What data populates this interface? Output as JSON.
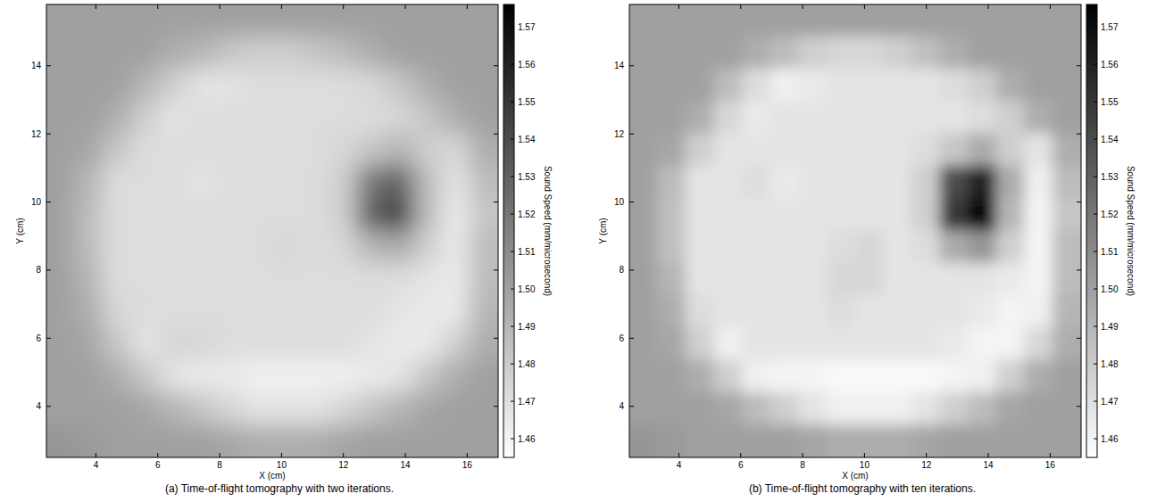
{
  "chart_data": [
    {
      "type": "heatmap",
      "title": "(a) Time-of-flight tomography with two iterations.",
      "xlabel": "X (cm)",
      "ylabel": "Y (cm)",
      "xlim": [
        2.4,
        17.0
      ],
      "ylim": [
        2.5,
        15.8
      ],
      "xticks": [
        4,
        6,
        8,
        10,
        12,
        14,
        16
      ],
      "yticks": [
        4,
        6,
        8,
        10,
        12,
        14
      ],
      "x": [
        2.86,
        3.77,
        4.68,
        5.6,
        6.51,
        7.42,
        8.33,
        9.25,
        10.16,
        11.07,
        11.98,
        12.9,
        13.81,
        14.72,
        15.63,
        16.54
      ],
      "y": [
        15.33,
        14.38,
        13.43,
        12.48,
        11.53,
        10.58,
        9.63,
        8.68,
        7.73,
        6.78,
        5.83,
        4.88,
        3.93,
        2.98
      ],
      "cells": [
        [
          1.5,
          1.5,
          1.5,
          1.5,
          1.5,
          1.5,
          1.5,
          1.5,
          1.5,
          1.5,
          1.5,
          1.5,
          1.5,
          1.5,
          1.5,
          1.5
        ],
        [
          1.5,
          1.5,
          1.5,
          1.5,
          1.494,
          1.49,
          1.482,
          1.478,
          1.478,
          1.482,
          1.487,
          1.494,
          1.5,
          1.5,
          1.5,
          1.5
        ],
        [
          1.5,
          1.5,
          1.5,
          1.49,
          1.478,
          1.468,
          1.468,
          1.471,
          1.471,
          1.471,
          1.471,
          1.474,
          1.482,
          1.494,
          1.5,
          1.5
        ],
        [
          1.5,
          1.5,
          1.494,
          1.478,
          1.468,
          1.471,
          1.471,
          1.471,
          1.471,
          1.471,
          1.471,
          1.471,
          1.474,
          1.482,
          1.494,
          1.5
        ],
        [
          1.5,
          1.497,
          1.482,
          1.471,
          1.471,
          1.471,
          1.471,
          1.471,
          1.471,
          1.471,
          1.474,
          1.482,
          1.49,
          1.478,
          1.474,
          1.494
        ],
        [
          1.5,
          1.49,
          1.471,
          1.471,
          1.471,
          1.468,
          1.471,
          1.471,
          1.471,
          1.471,
          1.478,
          1.52,
          1.53,
          1.487,
          1.468,
          1.487
        ],
        [
          1.5,
          1.487,
          1.471,
          1.471,
          1.471,
          1.471,
          1.471,
          1.471,
          1.471,
          1.471,
          1.478,
          1.53,
          1.545,
          1.487,
          1.465,
          1.482
        ],
        [
          1.5,
          1.487,
          1.471,
          1.471,
          1.471,
          1.471,
          1.471,
          1.471,
          1.474,
          1.471,
          1.474,
          1.49,
          1.495,
          1.478,
          1.465,
          1.487
        ],
        [
          1.5,
          1.49,
          1.471,
          1.471,
          1.471,
          1.471,
          1.471,
          1.471,
          1.471,
          1.471,
          1.471,
          1.471,
          1.471,
          1.468,
          1.465,
          1.487
        ],
        [
          1.5,
          1.494,
          1.474,
          1.471,
          1.471,
          1.471,
          1.471,
          1.471,
          1.471,
          1.471,
          1.471,
          1.471,
          1.468,
          1.465,
          1.465,
          1.49
        ],
        [
          1.5,
          1.497,
          1.482,
          1.468,
          1.474,
          1.474,
          1.471,
          1.471,
          1.471,
          1.471,
          1.471,
          1.468,
          1.465,
          1.465,
          1.478,
          1.494
        ],
        [
          1.5,
          1.5,
          1.494,
          1.482,
          1.468,
          1.465,
          1.465,
          1.462,
          1.462,
          1.462,
          1.462,
          1.465,
          1.468,
          1.482,
          1.494,
          1.5
        ],
        [
          1.5,
          1.5,
          1.5,
          1.497,
          1.49,
          1.482,
          1.474,
          1.468,
          1.468,
          1.468,
          1.474,
          1.482,
          1.49,
          1.497,
          1.5,
          1.5
        ],
        [
          1.505,
          1.503,
          1.5,
          1.5,
          1.5,
          1.5,
          1.497,
          1.494,
          1.494,
          1.494,
          1.497,
          1.5,
          1.5,
          1.5,
          1.5,
          1.5
        ]
      ],
      "colorbar": {
        "label": "Sound Speed (mm/microsecond)",
        "range": [
          1.455,
          1.576
        ],
        "ticks": [
          1.46,
          1.47,
          1.48,
          1.49,
          {
            "value": 1.5,
            "label": "1.50"
          },
          1.51,
          1.52,
          1.53,
          1.54,
          1.55,
          1.56,
          1.57
        ]
      }
    },
    {
      "type": "heatmap",
      "title": "(b) Time-of-flight tomography with ten iterations.",
      "xlabel": "X (cm)",
      "ylabel": "Y (cm)",
      "xlim": [
        2.4,
        17.0
      ],
      "ylim": [
        2.5,
        15.8
      ],
      "xticks": [
        4,
        6,
        8,
        10,
        12,
        14,
        16
      ],
      "yticks": [
        4,
        6,
        8,
        10,
        12,
        14
      ],
      "x": [
        2.86,
        3.77,
        4.68,
        5.6,
        6.51,
        7.42,
        8.33,
        9.25,
        10.16,
        11.07,
        11.98,
        12.9,
        13.81,
        14.72,
        15.63,
        16.54
      ],
      "y": [
        15.33,
        14.38,
        13.43,
        12.48,
        11.53,
        10.58,
        9.63,
        8.68,
        7.73,
        6.78,
        5.83,
        4.88,
        3.93,
        2.98
      ],
      "cells": [
        [
          1.5,
          1.5,
          1.5,
          1.5,
          1.5,
          1.5,
          1.5,
          1.5,
          1.5,
          1.5,
          1.5,
          1.5,
          1.5,
          1.5,
          1.5,
          1.5
        ],
        [
          1.5,
          1.5,
          1.5,
          1.5,
          1.494,
          1.487,
          1.478,
          1.474,
          1.474,
          1.478,
          1.485,
          1.494,
          1.5,
          1.5,
          1.5,
          1.5
        ],
        [
          1.5,
          1.5,
          1.5,
          1.487,
          1.471,
          1.462,
          1.465,
          1.468,
          1.468,
          1.468,
          1.468,
          1.471,
          1.478,
          1.494,
          1.5,
          1.5
        ],
        [
          1.5,
          1.5,
          1.494,
          1.474,
          1.465,
          1.468,
          1.468,
          1.468,
          1.468,
          1.468,
          1.468,
          1.468,
          1.471,
          1.478,
          1.494,
          1.5
        ],
        [
          1.5,
          1.497,
          1.478,
          1.468,
          1.468,
          1.468,
          1.468,
          1.468,
          1.468,
          1.468,
          1.471,
          1.482,
          1.495,
          1.478,
          1.468,
          1.494
        ],
        [
          1.5,
          1.487,
          1.468,
          1.468,
          1.471,
          1.465,
          1.468,
          1.468,
          1.468,
          1.468,
          1.478,
          1.54,
          1.56,
          1.495,
          1.462,
          1.487
        ],
        [
          1.5,
          1.485,
          1.468,
          1.468,
          1.468,
          1.468,
          1.468,
          1.468,
          1.468,
          1.468,
          1.478,
          1.55,
          1.573,
          1.49,
          1.46,
          1.482
        ],
        [
          1.5,
          1.485,
          1.468,
          1.468,
          1.468,
          1.468,
          1.468,
          1.471,
          1.474,
          1.468,
          1.471,
          1.495,
          1.505,
          1.478,
          1.46,
          1.487
        ],
        [
          1.5,
          1.49,
          1.468,
          1.468,
          1.468,
          1.468,
          1.468,
          1.474,
          1.474,
          1.468,
          1.468,
          1.468,
          1.468,
          1.465,
          1.46,
          1.487
        ],
        [
          1.5,
          1.494,
          1.471,
          1.468,
          1.468,
          1.468,
          1.468,
          1.471,
          1.468,
          1.468,
          1.468,
          1.468,
          1.465,
          1.46,
          1.462,
          1.49
        ],
        [
          1.5,
          1.497,
          1.478,
          1.462,
          1.468,
          1.468,
          1.468,
          1.468,
          1.468,
          1.468,
          1.468,
          1.465,
          1.46,
          1.46,
          1.474,
          1.494
        ],
        [
          1.5,
          1.5,
          1.494,
          1.478,
          1.462,
          1.46,
          1.46,
          1.458,
          1.458,
          1.458,
          1.458,
          1.46,
          1.462,
          1.478,
          1.494,
          1.5
        ],
        [
          1.5,
          1.5,
          1.5,
          1.497,
          1.487,
          1.478,
          1.468,
          1.462,
          1.462,
          1.462,
          1.468,
          1.478,
          1.487,
          1.497,
          1.5,
          1.5
        ],
        [
          1.505,
          1.503,
          1.5,
          1.5,
          1.5,
          1.5,
          1.497,
          1.494,
          1.494,
          1.494,
          1.497,
          1.5,
          1.5,
          1.5,
          1.5,
          1.5
        ]
      ],
      "colorbar": {
        "label": "Sound Speed (mm/microsecond)",
        "range": [
          1.455,
          1.576
        ],
        "ticks": [
          1.46,
          1.47,
          1.48,
          1.49,
          {
            "value": 1.5,
            "label": "1.50"
          },
          1.51,
          1.52,
          1.53,
          1.54,
          1.55,
          1.56,
          1.57
        ]
      }
    }
  ]
}
